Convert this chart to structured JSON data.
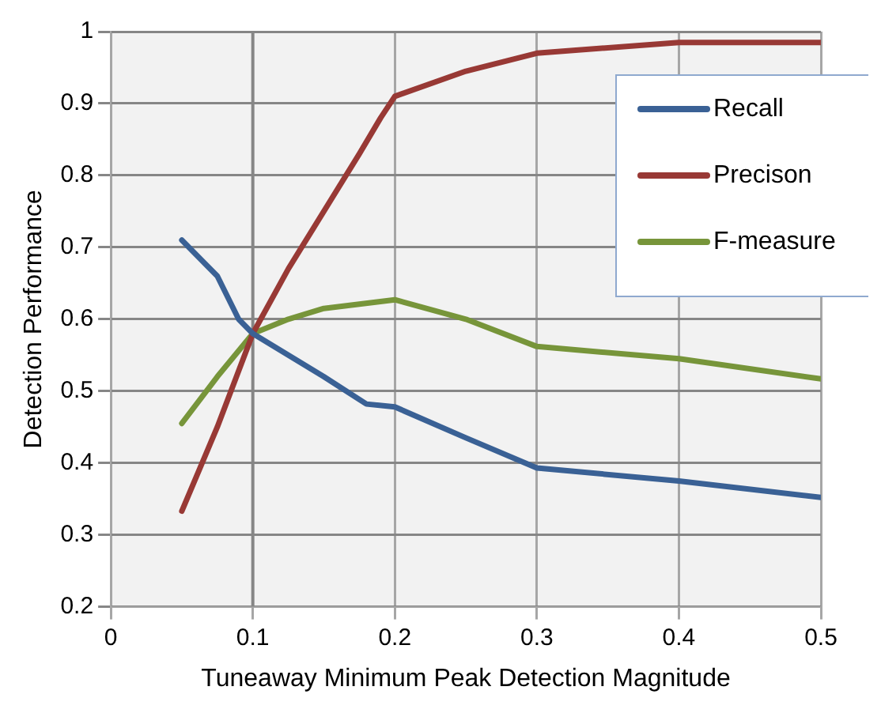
{
  "chart_data": {
    "type": "line",
    "xlabel": "Tuneaway Minimum Peak Detection Magnitude",
    "ylabel": "Detection Performance",
    "xlim": [
      0,
      0.5
    ],
    "xticks": [
      0,
      0.1,
      0.2,
      0.3,
      0.4,
      0.5
    ],
    "ylim": [
      0.2,
      1
    ],
    "yticks": [
      0.2,
      0.3,
      0.4,
      0.5,
      0.6,
      0.7,
      0.8,
      0.9,
      1
    ],
    "grid": true,
    "legend": "top right",
    "marker": "none",
    "ref_lines": [
      {
        "axis": "x",
        "value": 0.1,
        "color": "#868686"
      }
    ],
    "series": [
      {
        "name": "Recall",
        "color": "#3a6195",
        "x": [
          0.05,
          0.075,
          0.09,
          0.1,
          0.125,
          0.15,
          0.18,
          0.2,
          0.25,
          0.3,
          0.4,
          0.5
        ],
        "values": [
          0.71,
          0.66,
          0.6,
          0.58,
          0.55,
          0.52,
          0.482,
          0.478,
          0.435,
          0.393,
          0.375,
          0.352
        ]
      },
      {
        "name": "Precison",
        "color": "#983935",
        "x": [
          0.05,
          0.075,
          0.1,
          0.125,
          0.15,
          0.175,
          0.19,
          0.2,
          0.25,
          0.3,
          0.4,
          0.5
        ],
        "values": [
          0.333,
          0.45,
          0.58,
          0.67,
          0.75,
          0.83,
          0.88,
          0.91,
          0.945,
          0.97,
          0.985,
          0.985
        ]
      },
      {
        "name": "F-measure",
        "color": "#77953a",
        "x": [
          0.05,
          0.075,
          0.1,
          0.125,
          0.15,
          0.2,
          0.25,
          0.3,
          0.4,
          0.5
        ],
        "values": [
          0.455,
          0.52,
          0.58,
          0.6,
          0.615,
          0.627,
          0.6,
          0.562,
          0.545,
          0.517
        ]
      }
    ]
  }
}
